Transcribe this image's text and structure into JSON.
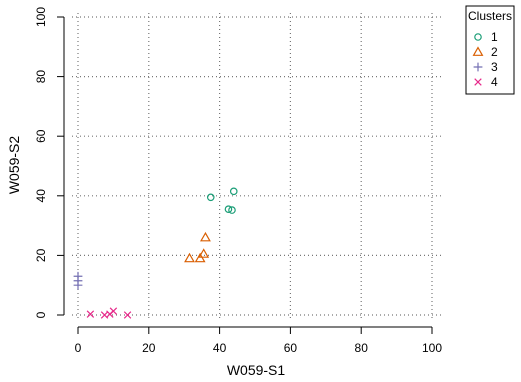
{
  "chart_data": {
    "type": "scatter",
    "title": "",
    "xlabel": "W059-S1",
    "ylabel": "W059-S2",
    "xlim": [
      0,
      100
    ],
    "ylim": [
      0,
      100
    ],
    "xticks": [
      "0",
      "20",
      "40",
      "60",
      "80",
      "100"
    ],
    "yticks": [
      "0",
      "20",
      "40",
      "60",
      "80",
      "100"
    ],
    "grid": true,
    "legend": {
      "title": "Clusters",
      "position": "top-right"
    },
    "series": [
      {
        "name": "1",
        "marker": "circle",
        "color": "#1b9e77",
        "points": [
          [
            37.5,
            39.5
          ],
          [
            42.5,
            35.5
          ],
          [
            43.5,
            35.2
          ],
          [
            44.0,
            41.5
          ]
        ]
      },
      {
        "name": "2",
        "marker": "triangle",
        "color": "#d95f02",
        "points": [
          [
            31.5,
            19.0
          ],
          [
            34.5,
            19.0
          ],
          [
            35.5,
            20.5
          ],
          [
            36.0,
            26.0
          ]
        ]
      },
      {
        "name": "3",
        "marker": "plus",
        "color": "#7570b3",
        "points": [
          [
            0.0,
            13.0
          ],
          [
            0.0,
            11.5
          ],
          [
            0.0,
            10.0
          ]
        ]
      },
      {
        "name": "4",
        "marker": "cross",
        "color": "#e7298a",
        "points": [
          [
            3.5,
            0.3
          ],
          [
            7.5,
            0.0
          ],
          [
            9.0,
            0.3
          ],
          [
            10.0,
            1.3
          ],
          [
            14.0,
            0.0
          ]
        ]
      }
    ]
  }
}
